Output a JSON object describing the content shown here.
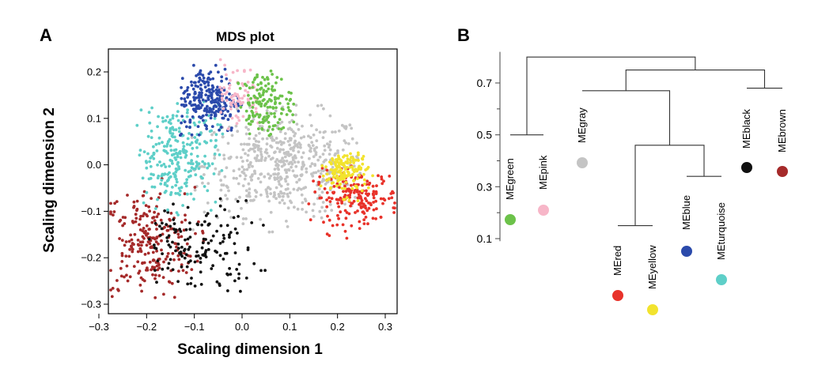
{
  "chart_data": [
    {
      "panel_label": "A",
      "type": "scatter",
      "title": "MDS plot",
      "xlabel": "Scaling dimension 1",
      "ylabel": "Scaling dimension 2",
      "xlim": [
        -0.3,
        0.33
      ],
      "ylim": [
        -0.305,
        0.235
      ],
      "xticks": [
        -0.3,
        -0.2,
        -0.1,
        0.0,
        0.1,
        0.2,
        0.3
      ],
      "xtick_labels": [
        "−0.3",
        "−0.2",
        "−0.1",
        "0.0",
        "0.1",
        "0.2",
        "0.3"
      ],
      "yticks": [
        0.2,
        0.1,
        0.0,
        -0.1,
        -0.2,
        -0.3
      ],
      "ytick_labels": [
        "0.2",
        "0.1",
        "0.0",
        "−0.1",
        "−0.2",
        "−0.3"
      ],
      "grid": false,
      "series": [
        {
          "name": "gray",
          "color": "#c4c4c4",
          "n": 520,
          "cx": 0.09,
          "cy": 0.0,
          "sx": 0.085,
          "sy": 0.055,
          "xr": [
            -0.12,
            0.25
          ],
          "yr": [
            -0.17,
            0.13
          ]
        },
        {
          "name": "brown",
          "color": "#a52a2a",
          "n": 230,
          "cx": -0.2,
          "cy": -0.17,
          "sx": 0.05,
          "sy": 0.06,
          "xr": [
            -0.29,
            -0.08
          ],
          "yr": [
            -0.29,
            -0.02
          ]
        },
        {
          "name": "black",
          "color": "#111111",
          "n": 150,
          "cx": -0.1,
          "cy": -0.18,
          "sx": 0.065,
          "sy": 0.05,
          "xr": [
            -0.2,
            0.07
          ],
          "yr": [
            -0.29,
            -0.07
          ]
        },
        {
          "name": "red",
          "color": "#e8322a",
          "n": 190,
          "cx": 0.24,
          "cy": -0.07,
          "sx": 0.045,
          "sy": 0.028,
          "xr": [
            0.13,
            0.33
          ],
          "yr": [
            -0.16,
            0.0
          ]
        },
        {
          "name": "yellow",
          "color": "#f2e32e",
          "n": 150,
          "cx": 0.215,
          "cy": -0.015,
          "sx": 0.025,
          "sy": 0.025,
          "xr": [
            0.16,
            0.28
          ],
          "yr": [
            -0.08,
            0.04
          ]
        },
        {
          "name": "turquoise",
          "color": "#5ecfc8",
          "n": 260,
          "cx": -0.14,
          "cy": 0.02,
          "sx": 0.045,
          "sy": 0.055,
          "xr": [
            -0.22,
            -0.04
          ],
          "yr": [
            -0.13,
            0.14
          ]
        },
        {
          "name": "blue",
          "color": "#2b4aab",
          "n": 240,
          "cx": -0.07,
          "cy": 0.14,
          "sx": 0.035,
          "sy": 0.035,
          "xr": [
            -0.13,
            0.0
          ],
          "yr": [
            0.06,
            0.23
          ]
        },
        {
          "name": "pink",
          "color": "#f7b6c8",
          "n": 70,
          "cx": -0.01,
          "cy": 0.15,
          "sx": 0.025,
          "sy": 0.035,
          "xr": [
            -0.05,
            0.04
          ],
          "yr": [
            0.07,
            0.23
          ]
        },
        {
          "name": "green",
          "color": "#6cc24a",
          "n": 150,
          "cx": 0.045,
          "cy": 0.13,
          "sx": 0.03,
          "sy": 0.035,
          "xr": [
            -0.01,
            0.11
          ],
          "yr": [
            0.06,
            0.21
          ]
        }
      ]
    },
    {
      "panel_label": "B",
      "type": "dendrogram",
      "ylim": [
        0.09,
        0.82
      ],
      "yticks": [
        0.1,
        0.3,
        0.5,
        0.7
      ],
      "ytick_labels": [
        "0.1",
        "0.3",
        "0.5",
        "0.7"
      ],
      "leaves": [
        {
          "label": "MEgreen",
          "color": "#6cc24a",
          "height": 0.5
        },
        {
          "label": "MEpink",
          "color": "#f7b6c8",
          "height": 0.5
        },
        {
          "label": "MEgray",
          "color": "#c4c4c4",
          "height": 0.67
        },
        {
          "label": "MEred",
          "color": "#e8322a",
          "height": 0.15
        },
        {
          "label": "MEyellow",
          "color": "#f2e32e",
          "height": 0.15
        },
        {
          "label": "MEblue",
          "color": "#2b4aab",
          "height": 0.34
        },
        {
          "label": "MEturquoise",
          "color": "#5ecfc8",
          "height": 0.34
        },
        {
          "label": "MEblack",
          "color": "#111111",
          "height": 0.68
        },
        {
          "label": "MEbrown",
          "color": "#a52a2a",
          "height": 0.68
        }
      ],
      "merges": [
        {
          "a": "L0",
          "b": "L1",
          "height": 0.5
        },
        {
          "a": "L3",
          "b": "L4",
          "height": 0.15
        },
        {
          "a": "L5",
          "b": "L6",
          "height": 0.34
        },
        {
          "a": "N1",
          "b": "N2",
          "height": 0.46
        },
        {
          "a": "L2",
          "b": "N3",
          "height": 0.67
        },
        {
          "a": "L7",
          "b": "L8",
          "height": 0.68
        },
        {
          "a": "N4",
          "b": "N5",
          "height": 0.75
        },
        {
          "a": "N0",
          "b": "N6",
          "height": 0.8
        }
      ]
    }
  ]
}
